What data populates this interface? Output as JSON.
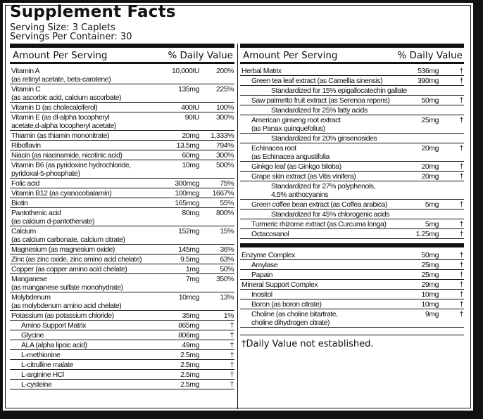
{
  "title": "Supplement Facts",
  "serving_size": "Serving Size: 3 Caplets",
  "servings_per_container": "Servings Per Container: 30",
  "header": {
    "amount": "Amount Per Serving",
    "dv": "% Daily Value"
  },
  "left_rows": [
    {
      "name": "Vitamin A",
      "name2": "(as retinyl acetate, beta-carotene)",
      "amount": "10,000IU",
      "dv": "200%"
    },
    {
      "name": "Vitamin C",
      "name2": "(as ascorbic acid, calcium ascorbate)",
      "amount": "135mg",
      "dv": "225%"
    },
    {
      "name": "Vitamin D (as cholecalciferol)",
      "amount": "400IU",
      "dv": "100%"
    },
    {
      "name": "Vitamin E (as dl-alpha tocopheryl",
      "name2": "acetate,d-alpha tocopheryl acetate)",
      "amount": "90IU",
      "dv": "300%"
    },
    {
      "name": "Thiamin (as thiamin mononitrate)",
      "amount": "20mg",
      "dv": "1,333%"
    },
    {
      "name": "Riboflavin",
      "amount": "13.5mg",
      "dv": "794%"
    },
    {
      "name": "Niacin (as niacinamide, nicotinic acid)",
      "amount": "60mg",
      "dv": "300%"
    },
    {
      "name": "Vitamin B6 (as pyridoxine hydrochloride,",
      "name2": "pyridoxal-5-phosphate)",
      "amount": "10mg",
      "dv": "500%"
    },
    {
      "name": "Folic acid",
      "amount": "300mcg",
      "dv": "75%"
    },
    {
      "name": "Vitamin B12 (as cyanocobalamin)",
      "amount": "100mcg",
      "dv": "1667%"
    },
    {
      "name": "Biotin",
      "amount": "165mcg",
      "dv": "55%"
    },
    {
      "name": "Pantothenic acid",
      "name2": "(as calcium d-pantothenate)",
      "amount": "80mg",
      "dv": "800%"
    },
    {
      "name": "Calcium",
      "name2": "(as calcium carbonate, calcium citrate)",
      "amount": "152mg",
      "dv": "15%"
    },
    {
      "name": "Magnesium (as magnesium oxide)",
      "amount": "145mg",
      "dv": "36%"
    },
    {
      "name": "Zinc (as zinc oxide, zinc amino acid chelate)",
      "amount": "9.5mg",
      "dv": "63%"
    },
    {
      "name": "Copper (as copper amino acid chelate)",
      "amount": "1mg",
      "dv": "50%"
    },
    {
      "name": "Manganese",
      "name2": "(as manganese sulfate monohydrate)",
      "amount": "7mg",
      "dv": "350%"
    },
    {
      "name": "Molybdenum",
      "name2": "(as molybdenum amino acid chelate)",
      "amount": "10mcg",
      "dv": "13%"
    },
    {
      "name": "Potassium (as potassium chloride)",
      "amount": "35mg",
      "dv": "1%"
    },
    {
      "name": "Amino Support Matrix",
      "amount": "865mg",
      "dv": "†",
      "indent": true
    },
    {
      "name": "Glycine",
      "amount": "806mg",
      "dv": "†",
      "indent": true
    },
    {
      "name": "ALA (alpha lipoic acid)",
      "amount": "49mg",
      "dv": "†",
      "indent": true
    },
    {
      "name": "L-methionine",
      "amount": "2.5mg",
      "dv": "†",
      "indent": true
    },
    {
      "name": "L-citrulline malate",
      "amount": "2.5mg",
      "dv": "†",
      "indent": true
    },
    {
      "name": "L-arginine HCl",
      "amount": "2.5mg",
      "dv": "†",
      "indent": true
    },
    {
      "name": "L-cysteine",
      "amount": "2.5mg",
      "dv": "†",
      "indent": true
    }
  ],
  "right_rows": [
    {
      "name": "Herbal Matrix",
      "amount": "536mg",
      "dv": "†"
    },
    {
      "name": "Green tea leaf extract (as Camellia sinensis)",
      "amount": "390mg",
      "dv": "†",
      "indent": true
    },
    {
      "name": "Standardized for 15% epigallocatechin gallate",
      "std": true
    },
    {
      "name": "Saw palmetto fruit extract (as Serenoa repens)",
      "amount": "50mg",
      "dv": "†",
      "indent": true
    },
    {
      "name": "Standardized for 25% fatty acids",
      "std": true
    },
    {
      "name": "American ginseng root extract",
      "name2": "(as Panax quinquefolius)",
      "amount": "25mg",
      "dv": "†",
      "indent": true
    },
    {
      "name": "Standardized for 20% ginsenosides",
      "std": true
    },
    {
      "name": "Echinacea root",
      "name2": "(as Echinacea angustifolia",
      "amount": "20mg",
      "dv": "†",
      "indent": true
    },
    {
      "name": "Ginkgo leaf (as Ginkgo biloba)",
      "amount": "20mg",
      "dv": "†",
      "indent": true
    },
    {
      "name": "Grape skin extract (as Vitis vinifera)",
      "amount": "20mg",
      "dv": "†",
      "indent": true
    },
    {
      "name": "Standardized for 27% polyphenols,",
      "name2": "4.5% anthocyanins",
      "std": true
    },
    {
      "name": "Green coffee bean extract (as Coffea arabica)",
      "amount": "5mg",
      "dv": "†",
      "indent": true
    },
    {
      "name": "Standardized for 45% chlorogenic acids",
      "std": true
    },
    {
      "name": "Turmeric rhizome extract (as Curcuma longa)",
      "amount": "5mg",
      "dv": "†",
      "indent": true
    },
    {
      "name": "Octacosanol",
      "amount": "1.25mg",
      "dv": "†",
      "indent": true
    }
  ],
  "right_rows2": [
    {
      "name": "Enzyme Complex",
      "amount": "50mg",
      "dv": "†"
    },
    {
      "name": "Amylase",
      "amount": "25mg",
      "dv": "†",
      "indent": true
    },
    {
      "name": "Papain",
      "amount": "25mg",
      "dv": "†",
      "indent": true
    },
    {
      "name": "Mineral Support Complex",
      "amount": "29mg",
      "dv": "†"
    },
    {
      "name": "Inositol",
      "amount": "10mg",
      "dv": "†",
      "indent": true
    },
    {
      "name": "Boron (as boron citrate)",
      "amount": "10mg",
      "dv": "†",
      "indent": true
    },
    {
      "name": "Choline (as choline bitartrate,",
      "name2": "choline dihydrogen citrate)",
      "amount": "9mg",
      "dv": "†",
      "indent": true
    }
  ],
  "footnote": "†Daily Value not established."
}
